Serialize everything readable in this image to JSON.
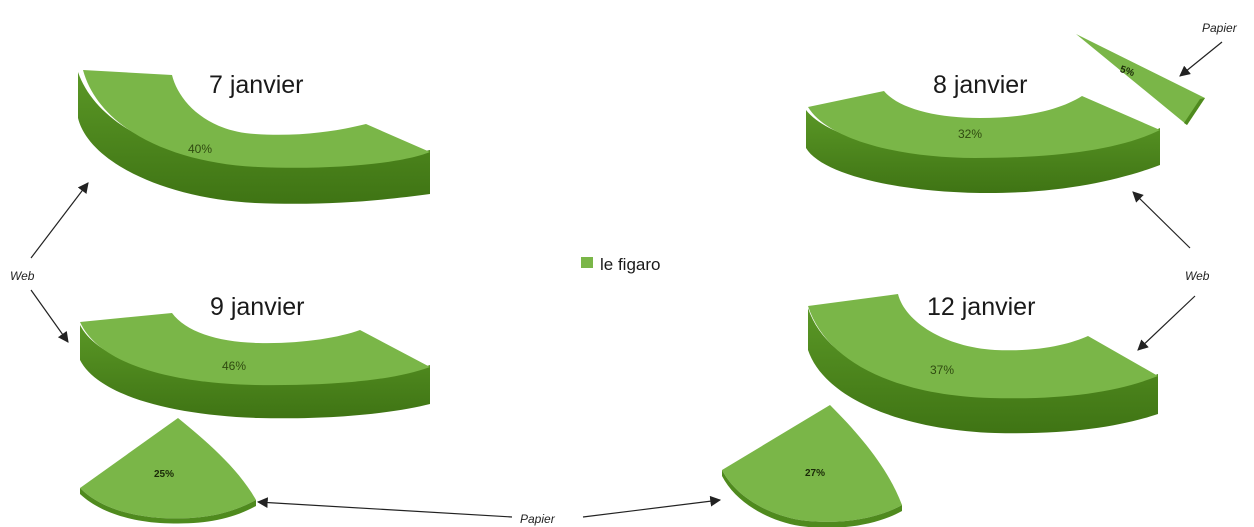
{
  "legend": {
    "label": "le figaro",
    "color": "#7ab648"
  },
  "annotations": {
    "web_left": "Web",
    "web_right": "Web",
    "papier_top": "Papier",
    "papier_bottom": "Papier"
  },
  "colors": {
    "top": "#7ab648",
    "side": "#4f8a1e",
    "side_dark": "#437a17"
  },
  "chart_data": [
    {
      "type": "pie",
      "title": "7 janvier",
      "slices": [
        {
          "series": "le figaro",
          "medium": "Web",
          "value": 40,
          "label": "40%"
        }
      ]
    },
    {
      "type": "pie",
      "title": "8 janvier",
      "slices": [
        {
          "series": "le figaro",
          "medium": "Web",
          "value": 32,
          "label": "32%"
        },
        {
          "series": "le figaro",
          "medium": "Papier",
          "value": 5,
          "label": "5%"
        }
      ]
    },
    {
      "type": "pie",
      "title": "9 janvier",
      "slices": [
        {
          "series": "le figaro",
          "medium": "Web",
          "value": 46,
          "label": "46%"
        },
        {
          "series": "le figaro",
          "medium": "Papier",
          "value": 25,
          "label": "25%"
        }
      ]
    },
    {
      "type": "pie",
      "title": "12 janvier",
      "slices": [
        {
          "series": "le figaro",
          "medium": "Web",
          "value": 37,
          "label": "37%"
        },
        {
          "series": "le figaro",
          "medium": "Papier",
          "value": 27,
          "label": "27%"
        }
      ]
    }
  ]
}
